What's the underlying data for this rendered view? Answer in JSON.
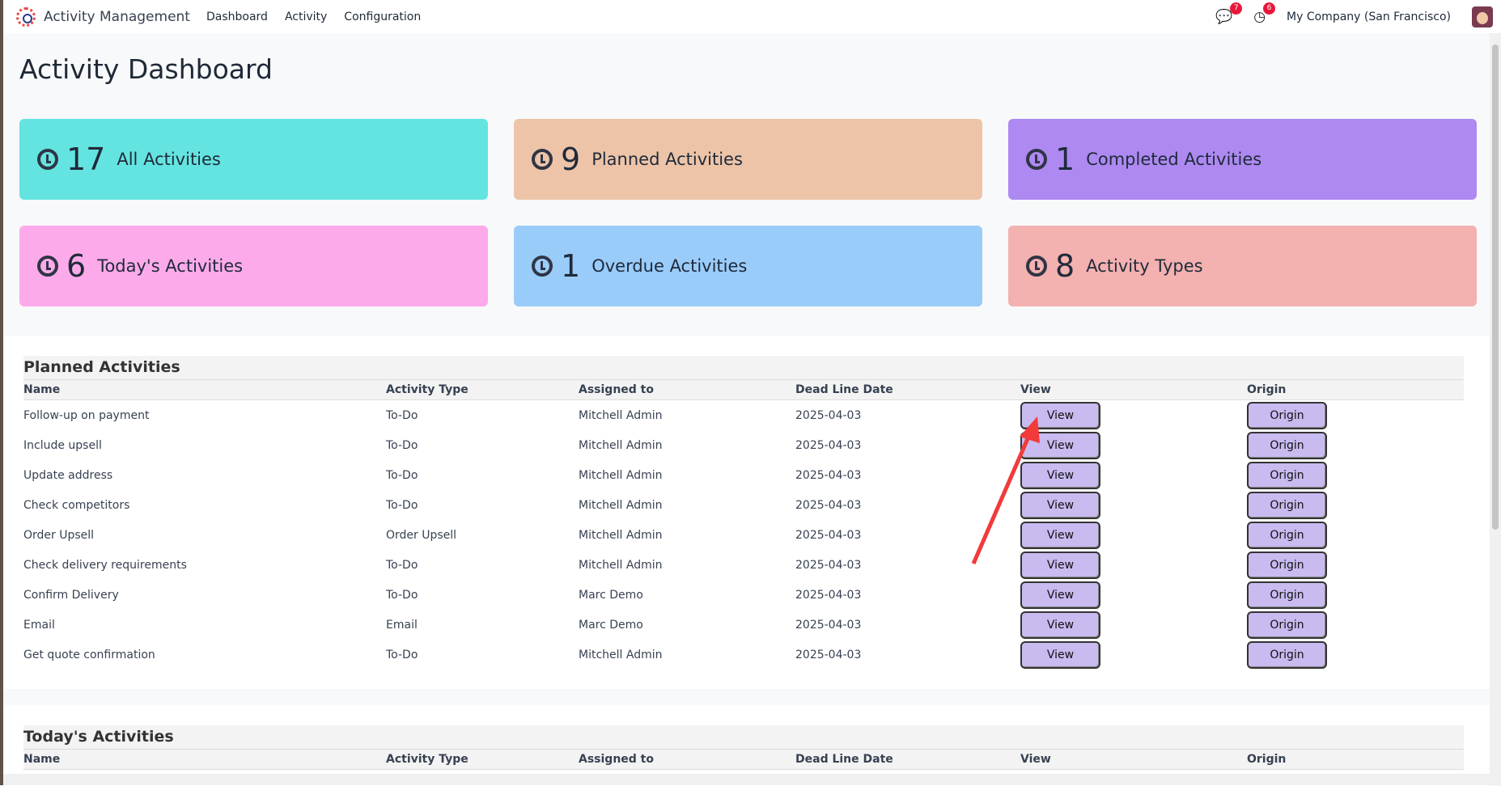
{
  "navbar": {
    "app_title": "Activity Management",
    "menu": [
      "Dashboard",
      "Activity",
      "Configuration"
    ],
    "messages_count": "7",
    "activities_count": "6",
    "company": "My Company (San Francisco)"
  },
  "page_title": "Activity Dashboard",
  "cards": [
    {
      "count": "17",
      "label": "All Activities",
      "color": "#64e4e0"
    },
    {
      "count": "9",
      "label": "Planned Activities",
      "color": "#edc4a8"
    },
    {
      "count": "1",
      "label": "Completed Activities",
      "color": "#ad89f1"
    },
    {
      "count": "6",
      "label": "Today's Activities",
      "color": "#fdaaeb"
    },
    {
      "count": "1",
      "label": "Overdue Activities",
      "color": "#9accfa"
    },
    {
      "count": "8",
      "label": "Activity Types",
      "color": "#f3b1b0"
    }
  ],
  "columns": [
    "Name",
    "Activity Type",
    "Assigned to",
    "Dead Line Date",
    "View",
    "Origin"
  ],
  "planned": {
    "title": "Planned Activities",
    "rows": [
      [
        "Follow-up on payment",
        "To-Do",
        "Mitchell Admin",
        "2025-04-03"
      ],
      [
        "Include upsell",
        "To-Do",
        "Mitchell Admin",
        "2025-04-03"
      ],
      [
        "Update address",
        "To-Do",
        "Mitchell Admin",
        "2025-04-03"
      ],
      [
        "Check competitors",
        "To-Do",
        "Mitchell Admin",
        "2025-04-03"
      ],
      [
        "Order Upsell",
        "Order Upsell",
        "Mitchell Admin",
        "2025-04-03"
      ],
      [
        "Check delivery requirements",
        "To-Do",
        "Mitchell Admin",
        "2025-04-03"
      ],
      [
        "Confirm Delivery",
        "To-Do",
        "Marc Demo",
        "2025-04-03"
      ],
      [
        "Email",
        "Email",
        "Marc Demo",
        "2025-04-03"
      ],
      [
        "Get quote confirmation",
        "To-Do",
        "Mitchell Admin",
        "2025-04-03"
      ]
    ]
  },
  "today": {
    "title": "Today's Activities"
  },
  "buttons": {
    "view": "View",
    "origin": "Origin"
  }
}
